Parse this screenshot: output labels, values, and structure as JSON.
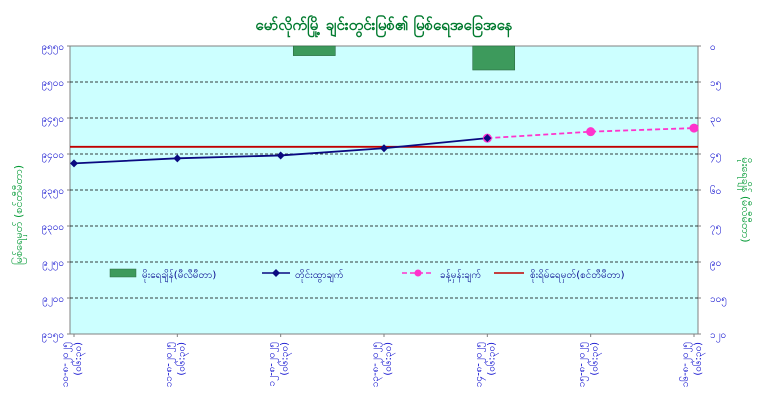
{
  "chart_data": {
    "type": "line",
    "title": "မော်လိုက်မြို့ ချင်းတွင်းမြစ်၏ မြစ်ရေအခြေအနေ",
    "ylabel_left": "မြစ်ရေမှတ် (စင်တီမီတာ)",
    "ylabel_right": "မိုးရေချိန် (မီလီမီတာ)",
    "left_axis": {
      "min": 9150,
      "max": 9550,
      "ticks": [
        "၉၁၅၀",
        "၉၂၀၀",
        "၉၂၅၀",
        "၉၃၀၀",
        "၉၃၅၀",
        "၉၄၀၀",
        "၉၄၅၀",
        "၉၅၀၀",
        "၉၅၅၀"
      ]
    },
    "right_axis": {
      "min": 0,
      "max": 120,
      "reversed": true,
      "ticks": [
        "၀",
        "၁၅",
        "၃၀",
        "၄၅",
        "၆၀",
        "၇၅",
        "၉၀",
        "၁၀၅",
        "၁၂၀"
      ]
    },
    "categories": [
      "၁၀-၈-၂၀၂၅",
      "၁၁-၈-၂၀၂၅",
      "၁၂-၈-၂၀၂၅",
      "၁၃-၈-၂၀၂၅",
      "၁၄-၈-၂၀၂၅",
      "၁၅-၈-၂၀၂၅",
      "၁၆-၈-၂၀၂၅"
    ],
    "category_times": [
      "(၀၆:၃၀)",
      "(၀၆:၃၀)",
      "(၀၆:၃၀)",
      "(၀၆:၃၀)",
      "(၀၆:၃၀)",
      "(၀၆:၃၀)",
      "(၀၆:၃၀)"
    ],
    "series": [
      {
        "name": "မိုးရေချိန်(မီလီမီတာ)",
        "type": "bar",
        "axis": "right",
        "color": "#3d9a5c",
        "values": [
          null,
          null,
          4,
          null,
          10,
          null,
          null
        ]
      },
      {
        "name": "တိုင်းထွာချက်",
        "type": "line",
        "axis": "left",
        "color": "#0a0a80",
        "values": [
          9387,
          9394,
          9398,
          9408,
          9422,
          null,
          null
        ]
      },
      {
        "name": "ခန့်မှန်းချက်",
        "type": "line-dashed",
        "axis": "left",
        "color": "#ff33cc",
        "values": [
          null,
          null,
          null,
          null,
          9422,
          9431,
          9436
        ]
      },
      {
        "name": "စိုးရိမ်ရေမှတ်(စင်တီမီတာ)",
        "type": "hline",
        "axis": "left",
        "color": "#c00000",
        "value": 9410
      }
    ],
    "grid": true,
    "legend_position": "bottom-inside",
    "colors": {
      "plot_bg": "#ccffff",
      "title": "#007a2e",
      "axis_text": "#0000cc",
      "axis_title": "#009933"
    }
  }
}
